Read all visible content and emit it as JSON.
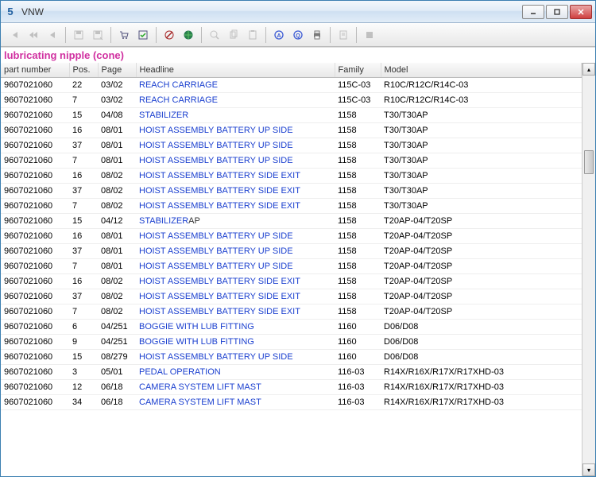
{
  "window": {
    "title": "VNW"
  },
  "section": {
    "title": "lubricating nipple (cone)"
  },
  "columns": {
    "part": "part number",
    "pos": "Pos.",
    "page": "Page",
    "headline": "Headline",
    "family": "Family",
    "model": "Model"
  },
  "colors": {
    "titlebar_from": "#f3f7fc",
    "titlebar_to": "#cfe0f2",
    "section_title": "#d030a0",
    "link": "#1a3fcf",
    "close_bg": "#d04040"
  },
  "toolbar_icons": [
    "first-icon",
    "prev-fast-icon",
    "prev-icon",
    "save-icon",
    "save-as-icon",
    "cart-icon",
    "check-icon",
    "no-globe-icon",
    "globe-icon",
    "zoom-icon",
    "copy-icon",
    "paste-icon",
    "find-icon",
    "find2-icon",
    "print-icon",
    "doc-icon",
    "stop-icon"
  ],
  "rows": [
    {
      "part": "9607021060",
      "pos": "22",
      "page": "03/02",
      "headline": "REACH CARRIAGE",
      "tail": "",
      "family": "115C-03",
      "model": "R10C/R12C/R14C-03"
    },
    {
      "part": "9607021060",
      "pos": "7",
      "page": "03/02",
      "headline": "REACH CARRIAGE",
      "tail": "",
      "family": "115C-03",
      "model": "R10C/R12C/R14C-03"
    },
    {
      "part": "9607021060",
      "pos": "15",
      "page": "04/08",
      "headline": "STABILIZER",
      "tail": "",
      "family": "1158",
      "model": "T30/T30AP"
    },
    {
      "part": "9607021060",
      "pos": "16",
      "page": "08/01",
      "headline": "HOIST ASSEMBLY BATTERY UP SIDE",
      "tail": "",
      "family": "1158",
      "model": "T30/T30AP"
    },
    {
      "part": "9607021060",
      "pos": "37",
      "page": "08/01",
      "headline": "HOIST ASSEMBLY BATTERY UP SIDE",
      "tail": "",
      "family": "1158",
      "model": "T30/T30AP"
    },
    {
      "part": "9607021060",
      "pos": "7",
      "page": "08/01",
      "headline": "HOIST ASSEMBLY BATTERY UP SIDE",
      "tail": "",
      "family": "1158",
      "model": "T30/T30AP"
    },
    {
      "part": "9607021060",
      "pos": "16",
      "page": "08/02",
      "headline": "HOIST ASSEMBLY BATTERY SIDE EXIT",
      "tail": "",
      "family": "1158",
      "model": "T30/T30AP"
    },
    {
      "part": "9607021060",
      "pos": "37",
      "page": "08/02",
      "headline": "HOIST ASSEMBLY BATTERY SIDE EXIT",
      "tail": "",
      "family": "1158",
      "model": "T30/T30AP"
    },
    {
      "part": "9607021060",
      "pos": "7",
      "page": "08/02",
      "headline": "HOIST ASSEMBLY BATTERY SIDE EXIT",
      "tail": "",
      "family": "1158",
      "model": "T30/T30AP"
    },
    {
      "part": "9607021060",
      "pos": "15",
      "page": "04/12",
      "headline": "STABILIZER",
      "tail": "AP",
      "family": "1158",
      "model": "T20AP-04/T20SP"
    },
    {
      "part": "9607021060",
      "pos": "16",
      "page": "08/01",
      "headline": "HOIST ASSEMBLY BATTERY UP SIDE",
      "tail": "",
      "family": "1158",
      "model": "T20AP-04/T20SP"
    },
    {
      "part": "9607021060",
      "pos": "37",
      "page": "08/01",
      "headline": "HOIST ASSEMBLY BATTERY UP SIDE",
      "tail": "",
      "family": "1158",
      "model": "T20AP-04/T20SP"
    },
    {
      "part": "9607021060",
      "pos": "7",
      "page": "08/01",
      "headline": "HOIST ASSEMBLY BATTERY UP SIDE",
      "tail": "",
      "family": "1158",
      "model": "T20AP-04/T20SP"
    },
    {
      "part": "9607021060",
      "pos": "16",
      "page": "08/02",
      "headline": "HOIST ASSEMBLY BATTERY SIDE EXIT",
      "tail": "",
      "family": "1158",
      "model": "T20AP-04/T20SP"
    },
    {
      "part": "9607021060",
      "pos": "37",
      "page": "08/02",
      "headline": "HOIST ASSEMBLY BATTERY SIDE EXIT",
      "tail": "",
      "family": "1158",
      "model": "T20AP-04/T20SP"
    },
    {
      "part": "9607021060",
      "pos": "7",
      "page": "08/02",
      "headline": "HOIST ASSEMBLY BATTERY SIDE EXIT",
      "tail": "",
      "family": "1158",
      "model": "T20AP-04/T20SP"
    },
    {
      "part": "9607021060",
      "pos": "6",
      "page": "04/251",
      "headline": "BOGGIE WITH LUB FITTING",
      "tail": "",
      "family": "1160",
      "model": "D06/D08"
    },
    {
      "part": "9607021060",
      "pos": "9",
      "page": "04/251",
      "headline": "BOGGIE WITH LUB FITTING",
      "tail": "",
      "family": "1160",
      "model": "D06/D08"
    },
    {
      "part": "9607021060",
      "pos": "15",
      "page": "08/279",
      "headline": "HOIST ASSEMBLY BATTERY UP SIDE",
      "tail": "",
      "family": "1160",
      "model": "D06/D08"
    },
    {
      "part": "9607021060",
      "pos": "3",
      "page": "05/01",
      "headline": "PEDAL OPERATION",
      "tail": "",
      "family": "116-03",
      "model": "R14X/R16X/R17X/R17XHD-03"
    },
    {
      "part": "9607021060",
      "pos": "12",
      "page": "06/18",
      "headline": "CAMERA SYSTEM LIFT MAST",
      "tail": "",
      "family": "116-03",
      "model": "R14X/R16X/R17X/R17XHD-03"
    },
    {
      "part": "9607021060",
      "pos": "34",
      "page": "06/18",
      "headline": "CAMERA SYSTEM LIFT MAST",
      "tail": "",
      "family": "116-03",
      "model": "R14X/R16X/R17X/R17XHD-03"
    }
  ]
}
